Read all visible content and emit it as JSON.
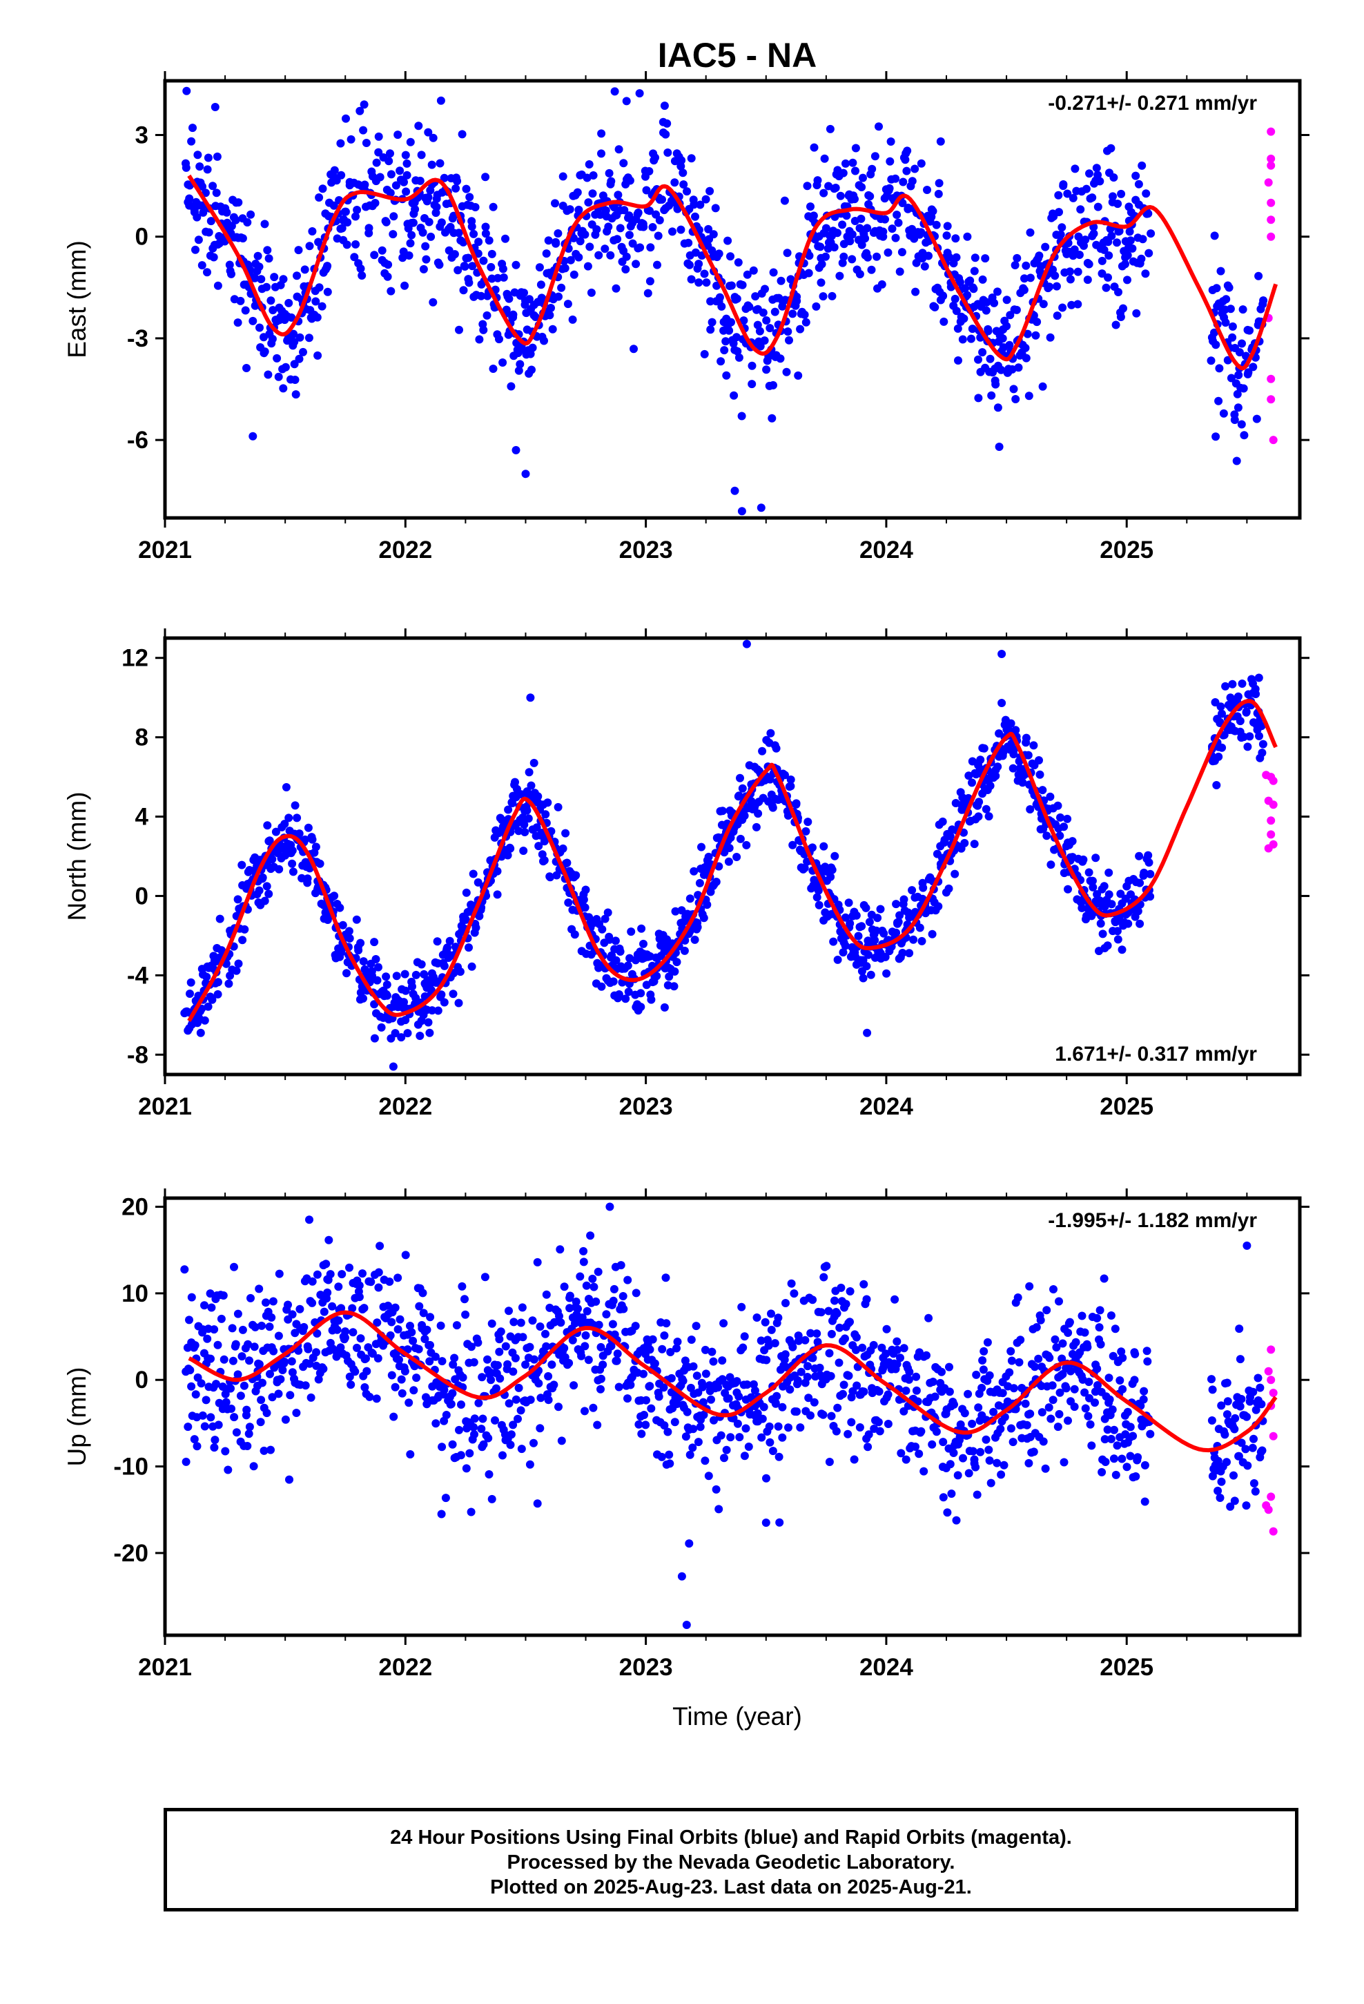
{
  "title": "IAC5 - NA",
  "xlabel": "Time (year)",
  "footer": {
    "line1": "24 Hour Positions Using Final Orbits (blue) and Rapid Orbits (magenta).",
    "line2": "Processed by the Nevada Geodetic Laboratory.",
    "line3": "Plotted on 2025-Aug-23. Last data on 2025-Aug-21."
  },
  "colors": {
    "final": "#0000ff",
    "rapid": "#ff00ff",
    "fit": "#ff0000",
    "frame": "#000000"
  },
  "chart_data": [
    {
      "type": "scatter",
      "name": "east",
      "ylabel": "East (mm)",
      "rate_text": "-0.271+/- 0.271 mm/yr",
      "rate_position": "top-right",
      "xlim": [
        2021.0,
        2025.72
      ],
      "ylim": [
        -8.3,
        4.6
      ],
      "xticks": [
        2021,
        2022,
        2023,
        2024,
        2025
      ],
      "yticks": [
        -6,
        -3,
        0,
        3
      ],
      "fit": {
        "x": [
          2021.1,
          2021.3,
          2021.45,
          2021.55,
          2021.7,
          2021.8,
          2022.0,
          2022.15,
          2022.3,
          2022.47,
          2022.55,
          2022.7,
          2022.85,
          2023.0,
          2023.1,
          2023.3,
          2023.45,
          2023.55,
          2023.7,
          2023.85,
          2024.0,
          2024.1,
          2024.3,
          2024.47,
          2024.55,
          2024.7,
          2024.85,
          2025.0,
          2025.12,
          2025.3,
          2025.45,
          2025.52,
          2025.62
        ],
        "y": [
          1.8,
          -0.5,
          -2.7,
          -2.4,
          0.5,
          1.3,
          1.1,
          1.6,
          -0.8,
          -3.0,
          -2.6,
          0.3,
          1.0,
          0.9,
          1.4,
          -1.2,
          -3.3,
          -2.9,
          0.2,
          0.8,
          0.7,
          1.1,
          -1.6,
          -3.5,
          -3.1,
          -0.5,
          0.4,
          0.3,
          0.8,
          -1.5,
          -3.7,
          -3.5,
          -1.4
        ]
      },
      "final": {
        "gaps": [
          [
            2025.1,
            2025.35
          ]
        ],
        "x_range": [
          2021.08,
          2025.57
        ],
        "scatter_sd": 1.1,
        "extreme_points": [
          {
            "x": 2021.09,
            "y": 4.3
          },
          {
            "x": 2023.37,
            "y": -7.5
          },
          {
            "x": 2023.4,
            "y": -8.1
          },
          {
            "x": 2023.48,
            "y": -8.0
          },
          {
            "x": 2022.5,
            "y": -7.0
          },
          {
            "x": 2022.46,
            "y": -6.3
          },
          {
            "x": 2024.47,
            "y": -6.2
          },
          {
            "x": 2025.37,
            "y": -5.9
          },
          {
            "x": 2022.92,
            "y": 4.0
          }
        ]
      },
      "rapid": [
        {
          "x": 2025.6,
          "y": 3.1
        },
        {
          "x": 2025.6,
          "y": 2.3
        },
        {
          "x": 2025.6,
          "y": 2.1
        },
        {
          "x": 2025.59,
          "y": 1.6
        },
        {
          "x": 2025.6,
          "y": 1.0
        },
        {
          "x": 2025.6,
          "y": 0.5
        },
        {
          "x": 2025.6,
          "y": 0.0
        },
        {
          "x": 2025.59,
          "y": -2.4
        },
        {
          "x": 2025.6,
          "y": -4.2
        },
        {
          "x": 2025.6,
          "y": -4.8
        },
        {
          "x": 2025.61,
          "y": -6.0
        }
      ]
    },
    {
      "type": "scatter",
      "name": "north",
      "ylabel": "North (mm)",
      "rate_text": "1.671+/- 0.317 mm/yr",
      "rate_position": "bottom-right",
      "xlim": [
        2021.0,
        2025.72
      ],
      "ylim": [
        -9.0,
        13.0
      ],
      "xticks": [
        2021,
        2022,
        2023,
        2024,
        2025
      ],
      "yticks": [
        -8,
        -4,
        0,
        4,
        8,
        12
      ],
      "fit": {
        "x": [
          2021.1,
          2021.25,
          2021.4,
          2021.5,
          2021.6,
          2021.75,
          2021.9,
          2022.0,
          2022.15,
          2022.3,
          2022.45,
          2022.52,
          2022.65,
          2022.8,
          2022.92,
          2023.05,
          2023.2,
          2023.35,
          2023.5,
          2023.55,
          2023.7,
          2023.85,
          2023.95,
          2024.1,
          2024.25,
          2024.4,
          2024.5,
          2024.55,
          2024.7,
          2024.85,
          2024.95,
          2025.1,
          2025.25,
          2025.4,
          2025.52,
          2025.62
        ],
        "y": [
          -6.3,
          -3.0,
          1.5,
          3.0,
          2.0,
          -2.5,
          -5.5,
          -5.9,
          -4.5,
          -0.5,
          4.0,
          4.7,
          1.5,
          -2.8,
          -4.2,
          -3.6,
          -1.0,
          3.5,
          6.3,
          6.0,
          1.5,
          -2.0,
          -2.6,
          -1.6,
          1.8,
          6.0,
          8.0,
          7.5,
          3.0,
          -0.4,
          -0.9,
          0.5,
          4.5,
          8.5,
          9.8,
          7.5
        ]
      },
      "final": {
        "gaps": [
          [
            2025.1,
            2025.35
          ]
        ],
        "x_range": [
          2021.08,
          2025.57
        ],
        "scatter_sd": 0.95,
        "extreme_points": [
          {
            "x": 2023.42,
            "y": 12.7
          },
          {
            "x": 2024.48,
            "y": 12.2
          },
          {
            "x": 2022.52,
            "y": 10.0
          },
          {
            "x": 2021.95,
            "y": -8.6
          },
          {
            "x": 2023.92,
            "y": -6.9
          },
          {
            "x": 2025.55,
            "y": 11.0
          }
        ]
      },
      "rapid": [
        {
          "x": 2025.58,
          "y": 6.1
        },
        {
          "x": 2025.6,
          "y": 6.0
        },
        {
          "x": 2025.61,
          "y": 5.8
        },
        {
          "x": 2025.59,
          "y": 4.8
        },
        {
          "x": 2025.61,
          "y": 4.6
        },
        {
          "x": 2025.6,
          "y": 3.8
        },
        {
          "x": 2025.6,
          "y": 3.1
        },
        {
          "x": 2025.61,
          "y": 2.6
        },
        {
          "x": 2025.59,
          "y": 2.4
        }
      ]
    },
    {
      "type": "scatter",
      "name": "up",
      "ylabel": "Up (mm)",
      "rate_text": "-1.995+/- 1.182 mm/yr",
      "rate_position": "top-right",
      "xlim": [
        2021.0,
        2025.72
      ],
      "ylim": [
        -29.5,
        21.0
      ],
      "xticks": [
        2021,
        2022,
        2023,
        2024,
        2025
      ],
      "yticks": [
        -20,
        -10,
        0,
        10,
        20
      ],
      "fit": {
        "x": [
          2021.1,
          2021.3,
          2021.5,
          2021.75,
          2022.0,
          2022.3,
          2022.5,
          2022.75,
          2023.0,
          2023.3,
          2023.5,
          2023.75,
          2024.0,
          2024.3,
          2024.5,
          2024.75,
          2025.0,
          2025.3,
          2025.5,
          2025.62
        ],
        "y": [
          2.5,
          0.0,
          3.0,
          7.8,
          3.0,
          -2.0,
          0.5,
          6.0,
          1.5,
          -4.0,
          -1.5,
          4.0,
          -0.5,
          -6.0,
          -3.5,
          2.0,
          -2.5,
          -8.0,
          -6.0,
          -2.0
        ]
      },
      "final": {
        "gaps": [
          [
            2025.1,
            2025.35
          ]
        ],
        "x_range": [
          2021.08,
          2025.57
        ],
        "scatter_sd": 4.5,
        "extreme_points": [
          {
            "x": 2022.85,
            "y": 20.0
          },
          {
            "x": 2023.17,
            "y": -28.3
          },
          {
            "x": 2023.15,
            "y": -22.7
          },
          {
            "x": 2023.18,
            "y": -18.9
          },
          {
            "x": 2025.5,
            "y": 15.5
          },
          {
            "x": 2021.6,
            "y": 18.5
          },
          {
            "x": 2023.5,
            "y": -16.5
          },
          {
            "x": 2022.15,
            "y": -15.5
          }
        ]
      },
      "rapid": [
        {
          "x": 2025.6,
          "y": 3.5
        },
        {
          "x": 2025.59,
          "y": 1.0
        },
        {
          "x": 2025.6,
          "y": 0.0
        },
        {
          "x": 2025.61,
          "y": -1.5
        },
        {
          "x": 2025.6,
          "y": -3.0
        },
        {
          "x": 2025.61,
          "y": -6.5
        },
        {
          "x": 2025.6,
          "y": -13.5
        },
        {
          "x": 2025.58,
          "y": -14.5
        },
        {
          "x": 2025.59,
          "y": -15.0
        },
        {
          "x": 2025.61,
          "y": -17.5
        }
      ]
    }
  ]
}
